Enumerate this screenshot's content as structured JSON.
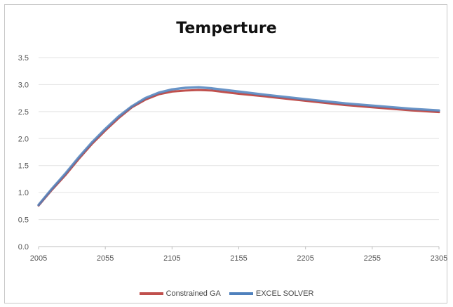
{
  "chart_data": {
    "type": "line",
    "title": "Temperture",
    "xlabel": "",
    "ylabel": "",
    "x_ticks": [
      "2005",
      "2055",
      "2105",
      "2155",
      "2205",
      "2255",
      "2305"
    ],
    "xlim": [
      2005,
      2305
    ],
    "ylim": [
      0,
      3.5
    ],
    "y_ticks": [
      "0.0",
      "0.5",
      "1.0",
      "1.5",
      "2.0",
      "2.5",
      "3.0",
      "3.5"
    ],
    "grid": true,
    "legend_position": "bottom",
    "series": [
      {
        "name": "Constrained GA",
        "color": "#c0504d",
        "x": [
          2005,
          2015,
          2025,
          2035,
          2045,
          2055,
          2065,
          2075,
          2085,
          2095,
          2105,
          2115,
          2125,
          2135,
          2145,
          2155,
          2175,
          2205,
          2235,
          2255,
          2285,
          2305
        ],
        "y": [
          0.76,
          1.05,
          1.32,
          1.62,
          1.9,
          2.15,
          2.38,
          2.58,
          2.72,
          2.82,
          2.87,
          2.89,
          2.9,
          2.89,
          2.86,
          2.83,
          2.78,
          2.7,
          2.62,
          2.58,
          2.52,
          2.49
        ]
      },
      {
        "name": "EXCEL SOLVER",
        "color": "#4f81bd",
        "x": [
          2005,
          2015,
          2025,
          2035,
          2045,
          2055,
          2065,
          2075,
          2085,
          2095,
          2105,
          2115,
          2125,
          2135,
          2145,
          2155,
          2175,
          2205,
          2235,
          2255,
          2285,
          2305
        ],
        "y": [
          0.77,
          1.07,
          1.35,
          1.65,
          1.93,
          2.18,
          2.41,
          2.6,
          2.75,
          2.85,
          2.91,
          2.94,
          2.95,
          2.93,
          2.9,
          2.87,
          2.81,
          2.73,
          2.65,
          2.61,
          2.55,
          2.52
        ]
      }
    ]
  }
}
